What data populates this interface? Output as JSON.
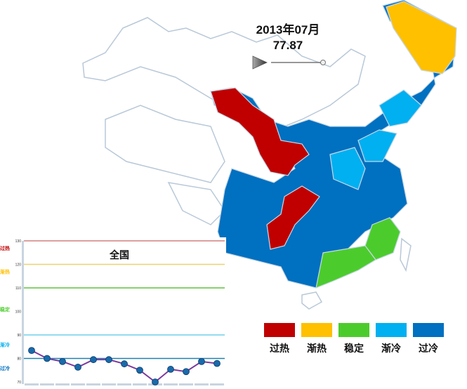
{
  "header": {
    "period": "2013年07月",
    "value": "77.87"
  },
  "legend": [
    {
      "label": "过热",
      "color": "#c00000"
    },
    {
      "label": "渐热",
      "color": "#ffc000"
    },
    {
      "label": "稳定",
      "color": "#4ccc2c"
    },
    {
      "label": "渐冷",
      "color": "#00b0f0"
    },
    {
      "label": "过冷",
      "color": "#0070c0"
    }
  ],
  "chart_data": {
    "type": "line",
    "title": "全国",
    "ylim": [
      70,
      130
    ],
    "yticks": [
      70,
      80,
      90,
      100,
      110,
      120,
      130
    ],
    "values": [
      83.4,
      80.0,
      78.7,
      76.3,
      79.5,
      79.5,
      77.7,
      75.0,
      70.0,
      75.4,
      74.4,
      78.7,
      77.87
    ],
    "thresholds": [
      {
        "label": "过热",
        "value": 130,
        "color": "#d08080"
      },
      {
        "label": "渐热",
        "value": 120,
        "color": "#f0d070"
      },
      {
        "label": "稳定",
        "value": 110,
        "color": "#60c040"
      },
      {
        "label": "渐冷",
        "value": 90,
        "color": "#70d0e8"
      },
      {
        "label": "过冷",
        "value": 80,
        "color": "#2080b0"
      }
    ],
    "band_labels": [
      {
        "label": "过热",
        "value": 127,
        "color": "#c00000"
      },
      {
        "label": "渐热",
        "value": 117,
        "color": "#ffc000"
      },
      {
        "label": "稳定",
        "value": 101,
        "color": "#4ccc2c"
      },
      {
        "label": "渐冷",
        "value": 86,
        "color": "#00b0f0"
      },
      {
        "label": "过冷",
        "value": 76,
        "color": "#0070c0"
      }
    ]
  }
}
